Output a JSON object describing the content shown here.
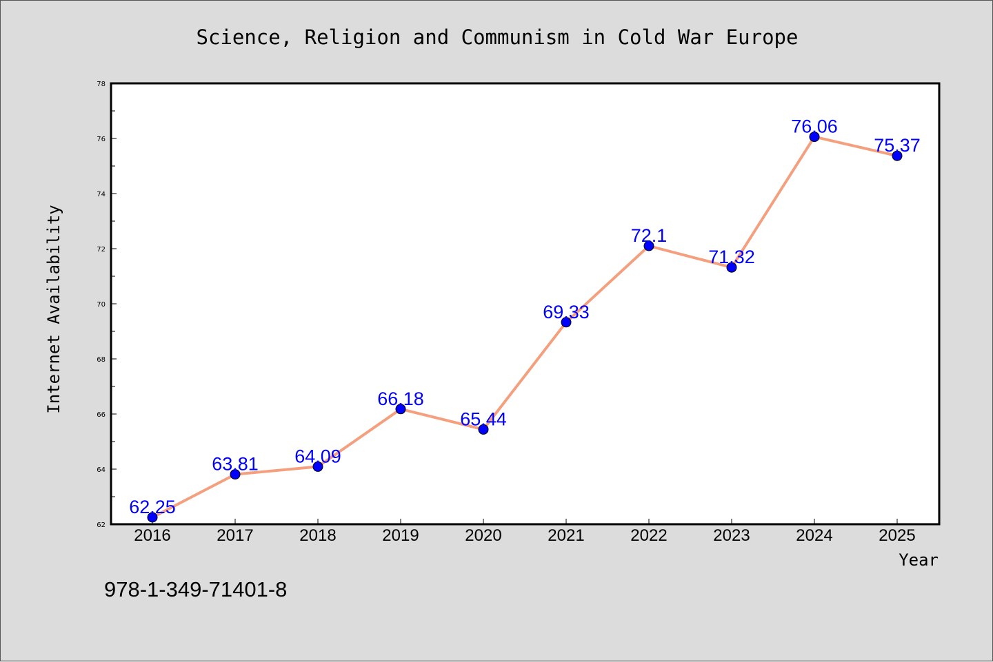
{
  "chart_data": {
    "type": "line",
    "title": "Science, Religion and Communism in Cold War Europe",
    "xlabel": "Year",
    "ylabel": "Internet Availability",
    "categories": [
      "2016",
      "2017",
      "2018",
      "2019",
      "2020",
      "2021",
      "2022",
      "2023",
      "2024",
      "2025"
    ],
    "values": [
      62.25,
      63.81,
      64.09,
      66.18,
      65.44,
      69.33,
      72.1,
      71.32,
      76.06,
      75.37
    ],
    "data_labels": [
      "62.25",
      "63.81",
      "64.09",
      "66.18",
      "65.44",
      "69.33",
      "72.1",
      "71.32",
      "76.06",
      "75.37"
    ],
    "ylim": [
      62,
      78
    ],
    "yticks": [
      62,
      64,
      66,
      68,
      70,
      72,
      74,
      76,
      78
    ],
    "grid": false,
    "legend": "none",
    "line_color": "#f4a07f",
    "marker_color": "#0000ff",
    "label_color": "#0000ff"
  },
  "annotation": "978-1-349-71401-8"
}
